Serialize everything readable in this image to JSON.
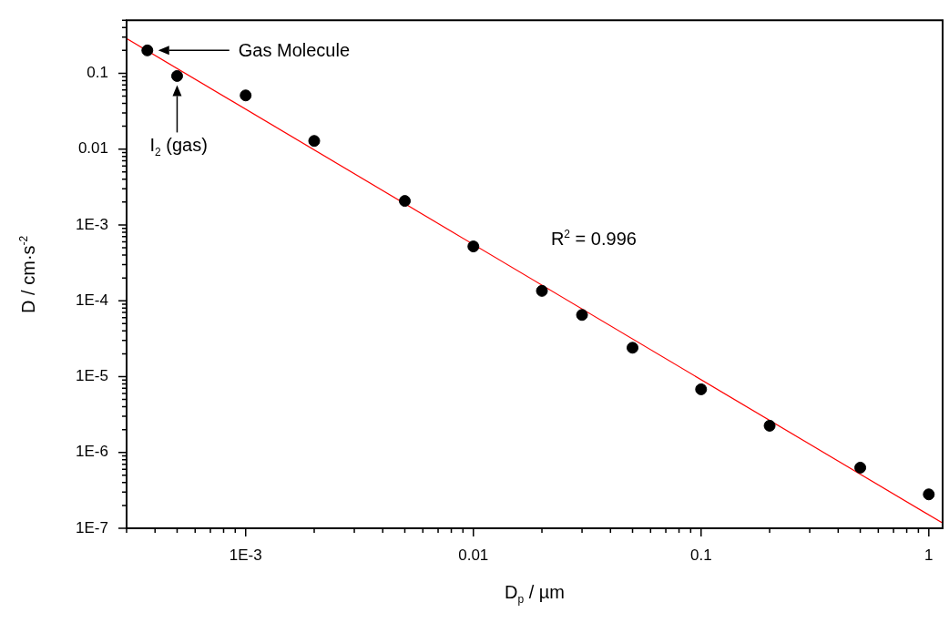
{
  "chart_data": {
    "type": "scatter",
    "xlabel": "D$_{p}$ / µm",
    "ylabel": "D / cm·s$^{-2}$",
    "log": "xy",
    "xlim": [
      0.0003,
      1.15
    ],
    "xticks": [
      {
        "value": 0.0003,
        "label": null
      },
      {
        "value": 0.0004,
        "label": null
      },
      {
        "value": 0.0005,
        "label": null
      },
      {
        "value": 0.0006,
        "label": null
      },
      {
        "value": 0.0007,
        "label": null
      },
      {
        "value": 0.0008,
        "label": null
      },
      {
        "value": 0.0009,
        "label": null
      },
      {
        "value": 0.001,
        "label": "1E-3"
      },
      {
        "value": 0.002,
        "label": null
      },
      {
        "value": 0.003,
        "label": null
      },
      {
        "value": 0.004,
        "label": null
      },
      {
        "value": 0.005,
        "label": null
      },
      {
        "value": 0.006,
        "label": null
      },
      {
        "value": 0.007,
        "label": null
      },
      {
        "value": 0.008,
        "label": null
      },
      {
        "value": 0.009,
        "label": null
      },
      0.01,
      {
        "value": 0.02,
        "label": null
      },
      {
        "value": 0.03,
        "label": null
      },
      {
        "value": 0.04,
        "label": null
      },
      {
        "value": 0.05,
        "label": null
      },
      {
        "value": 0.06,
        "label": null
      },
      {
        "value": 0.07,
        "label": null
      },
      {
        "value": 0.08,
        "label": null
      },
      {
        "value": 0.09,
        "label": null
      },
      0.1,
      {
        "value": 0.2,
        "label": null
      },
      {
        "value": 0.3,
        "label": null
      },
      {
        "value": 0.4,
        "label": null
      },
      {
        "value": 0.5,
        "label": null
      },
      {
        "value": 0.6,
        "label": null
      },
      {
        "value": 0.7,
        "label": null
      },
      {
        "value": 0.8,
        "label": null
      },
      {
        "value": 0.9,
        "label": null
      },
      1
    ],
    "ylim": [
      1e-07,
      0.5
    ],
    "yticks": [
      {
        "value": 1e-07,
        "label": "1E-7"
      },
      {
        "value": 2e-07,
        "label": null
      },
      {
        "value": 3e-07,
        "label": null
      },
      {
        "value": 4e-07,
        "label": null
      },
      {
        "value": 5e-07,
        "label": null
      },
      {
        "value": 6e-07,
        "label": null
      },
      {
        "value": 7e-07,
        "label": null
      },
      {
        "value": 8e-07,
        "label": null
      },
      {
        "value": 9e-07,
        "label": null
      },
      {
        "value": 1e-06,
        "label": "1E-6"
      },
      {
        "value": 2e-06,
        "label": null
      },
      {
        "value": 3e-06,
        "label": null
      },
      {
        "value": 4e-06,
        "label": null
      },
      {
        "value": 5e-06,
        "label": null
      },
      {
        "value": 6e-06,
        "label": null
      },
      {
        "value": 7e-06,
        "label": null
      },
      {
        "value": 8e-06,
        "label": null
      },
      {
        "value": 9e-06,
        "label": null
      },
      {
        "value": 1e-05,
        "label": "1E-5"
      },
      {
        "value": 2e-05,
        "label": null
      },
      {
        "value": 3e-05,
        "label": null
      },
      {
        "value": 4e-05,
        "label": null
      },
      {
        "value": 5e-05,
        "label": null
      },
      {
        "value": 6e-05,
        "label": null
      },
      {
        "value": 7e-05,
        "label": null
      },
      {
        "value": 8e-05,
        "label": null
      },
      {
        "value": 9e-05,
        "label": null
      },
      {
        "value": 0.0001,
        "label": "1E-4"
      },
      {
        "value": 0.0002,
        "label": null
      },
      {
        "value": 0.0003,
        "label": null
      },
      {
        "value": 0.0004,
        "label": null
      },
      {
        "value": 0.0005,
        "label": null
      },
      {
        "value": 0.0006,
        "label": null
      },
      {
        "value": 0.0007,
        "label": null
      },
      {
        "value": 0.0008,
        "label": null
      },
      {
        "value": 0.0009,
        "label": null
      },
      {
        "value": 0.001,
        "label": "1E-3"
      },
      {
        "value": 0.002,
        "label": null
      },
      {
        "value": 0.003,
        "label": null
      },
      {
        "value": 0.004,
        "label": null
      },
      {
        "value": 0.005,
        "label": null
      },
      {
        "value": 0.006,
        "label": null
      },
      {
        "value": 0.007,
        "label": null
      },
      {
        "value": 0.008,
        "label": null
      },
      {
        "value": 0.009,
        "label": null
      },
      0.01,
      {
        "value": 0.02,
        "label": null
      },
      {
        "value": 0.03,
        "label": null
      },
      {
        "value": 0.04,
        "label": null
      },
      {
        "value": 0.05,
        "label": null
      },
      {
        "value": 0.06,
        "label": null
      },
      {
        "value": 0.07,
        "label": null
      },
      {
        "value": 0.08,
        "label": null
      },
      {
        "value": 0.09,
        "label": null
      },
      0.1,
      {
        "value": 0.2,
        "label": null
      },
      {
        "value": 0.3,
        "label": null
      },
      {
        "value": 0.4,
        "label": null
      },
      {
        "value": 0.5,
        "label": null
      }
    ],
    "series": [
      {
        "type": "scatter",
        "marker": "circle",
        "color": "#000000",
        "x": [
          0.00037,
          0.0005,
          0.001,
          0.002,
          0.005,
          0.01,
          0.02,
          0.03,
          0.05,
          0.1,
          0.2,
          0.5,
          1
        ],
        "values": [
          0.2,
          0.092,
          0.051,
          0.0128,
          0.00207,
          0.00052,
          0.000135,
          6.5e-05,
          2.4e-05,
          6.8e-06,
          2.25e-06,
          6.3e-07,
          2.8e-07
        ]
      },
      {
        "type": "line",
        "marker": "none",
        "color": "#ff0000",
        "x": [
          0.0003,
          1.15
        ],
        "values": [
          0.287,
          1.17e-07
        ]
      }
    ],
    "annotations": [
      "Gas Molecule",
      "I$_{2}$ (gas)",
      "R$^{2}$ = 0.996"
    ]
  }
}
